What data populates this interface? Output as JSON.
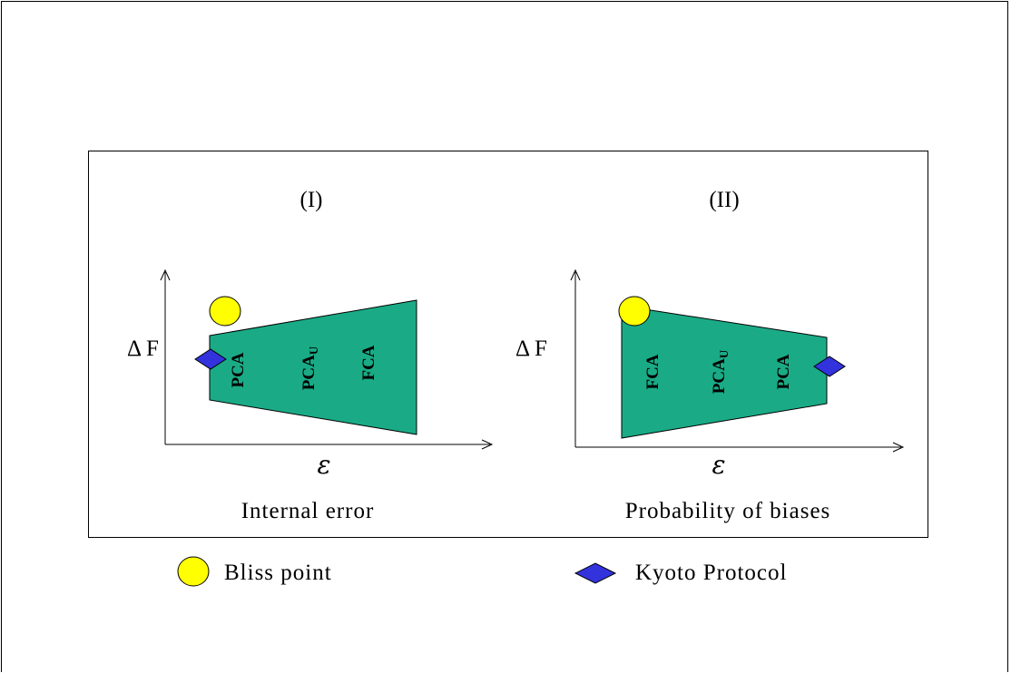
{
  "panels": [
    {
      "title": "(I)",
      "caption": "Internal error",
      "y_axis_label": "Δ F",
      "x_axis_label": "ε",
      "region_labels": [
        "PCA",
        "PCA_U",
        "FCA"
      ]
    },
    {
      "title": "(II)",
      "caption": "Probability of biases",
      "y_axis_label": "Δ F",
      "x_axis_label": "ε",
      "region_labels": [
        "FCA",
        "PCA_U",
        "PCA"
      ]
    }
  ],
  "region_text": {
    "pca": "PCA",
    "pcau_base": "PCA",
    "pcau_sub": "U",
    "fca": "FCA"
  },
  "legend": {
    "bliss_point": "Bliss point",
    "kyoto_protocol": "Kyoto Protocol"
  },
  "colors": {
    "region_fill": "#1aab86",
    "bliss_fill": "#ffff00",
    "kyoto_fill": "#3333dd",
    "frame": "#000000"
  },
  "icons": {
    "bliss": "yellow-ellipse",
    "kyoto": "blue-diamond"
  }
}
